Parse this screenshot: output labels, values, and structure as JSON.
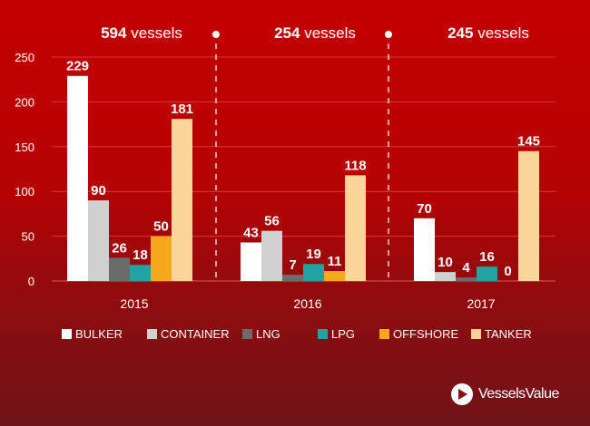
{
  "chart_data": {
    "type": "bar",
    "categories": [
      "2015",
      "2016",
      "2017"
    ],
    "group_totals": [
      {
        "count": "594",
        "label": "vessels"
      },
      {
        "count": "254",
        "label": "vessels"
      },
      {
        "count": "245",
        "label": "vessels"
      }
    ],
    "series": [
      {
        "name": "BULKER",
        "color": "#ffffff",
        "values": [
          229,
          43,
          70
        ]
      },
      {
        "name": "CONTAINER",
        "color": "#d0d0d0",
        "values": [
          90,
          56,
          10
        ]
      },
      {
        "name": "LNG",
        "color": "#6b6b6b",
        "values": [
          26,
          7,
          4
        ]
      },
      {
        "name": "LPG",
        "color": "#1fa3a3",
        "values": [
          18,
          19,
          16
        ]
      },
      {
        "name": "OFFSHORE",
        "color": "#f5a81d",
        "values": [
          50,
          11,
          0
        ]
      },
      {
        "name": "TANKER",
        "color": "#fbd49a",
        "values": [
          181,
          118,
          145
        ]
      }
    ],
    "yticks": [
      0,
      50,
      100,
      150,
      200,
      250
    ],
    "ylim": [
      0,
      250
    ],
    "grid": true,
    "legend": "bottom"
  },
  "brand": {
    "logo_text": "VesselsValue"
  }
}
